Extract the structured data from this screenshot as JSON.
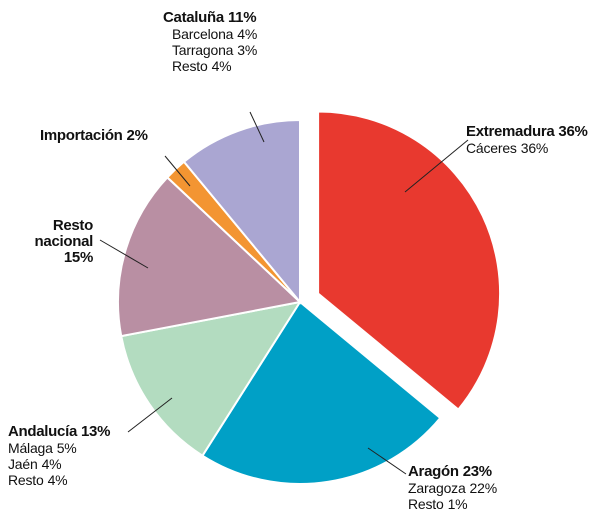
{
  "chart_data": {
    "type": "pie",
    "categories": [
      "Extremadura",
      "Aragón",
      "Andalucía",
      "Resto nacional",
      "Importación",
      "Cataluña"
    ],
    "values": [
      36,
      23,
      13,
      15,
      2,
      11
    ],
    "value_labels": [
      "36%",
      "23%",
      "13%",
      "15%",
      "2%",
      "11%"
    ],
    "colors": [
      "#e8392f",
      "#00a0c6",
      "#b3dcc0",
      "#b98fa3",
      "#f39532",
      "#aaa6d2"
    ],
    "exploded": [
      true,
      false,
      false,
      false,
      false,
      false
    ],
    "breakdown": [
      [
        {
          "name": "Cáceres",
          "share": "36%"
        }
      ],
      [
        {
          "name": "Zaragoza",
          "share": "22%"
        },
        {
          "name": "Resto",
          "share": "1%"
        }
      ],
      [
        {
          "name": "Málaga",
          "share": "5%"
        },
        {
          "name": "Jaén",
          "share": "4%"
        },
        {
          "name": "Resto",
          "share": "4%"
        }
      ],
      [],
      [],
      [
        {
          "name": "Barcelona",
          "share": "4%"
        },
        {
          "name": "Tarragona",
          "share": "3%"
        },
        {
          "name": "Resto",
          "share": "4%"
        }
      ]
    ]
  }
}
